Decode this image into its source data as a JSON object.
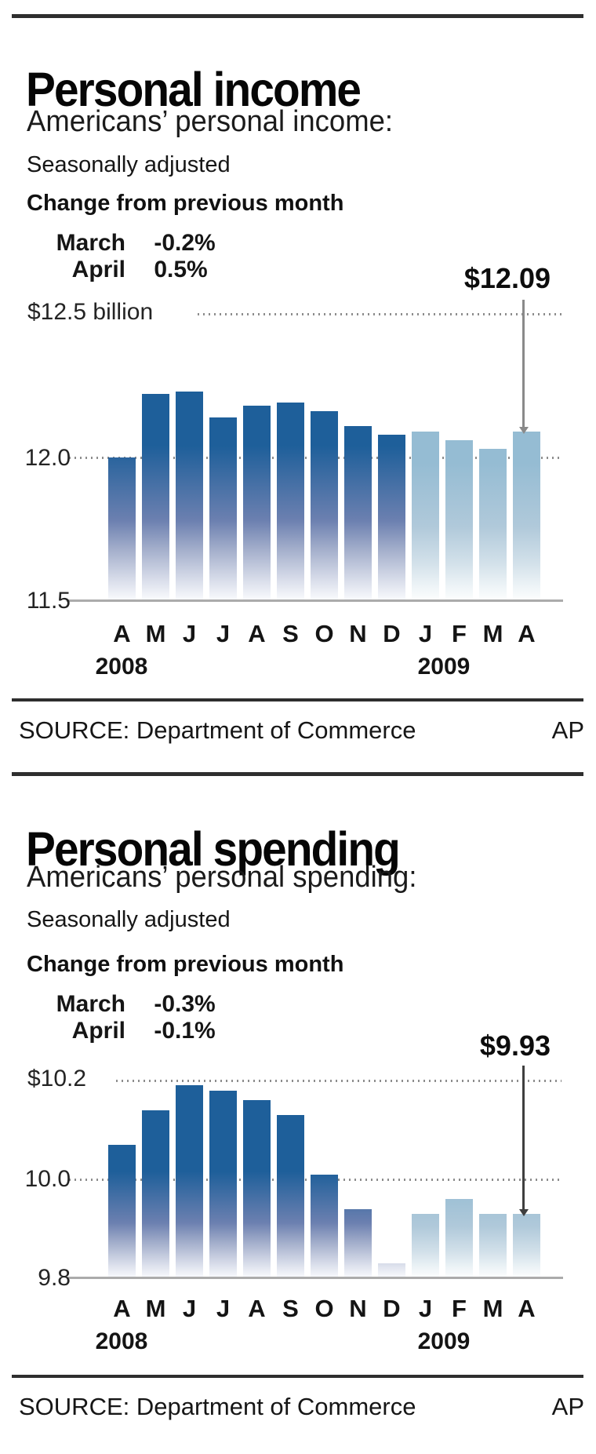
{
  "sections": [
    {
      "title": "Personal income",
      "subtitle": "Americans’ personal income:",
      "note": "Seasonally adjusted",
      "change_label": "Change from previous month",
      "changes": [
        {
          "month": "March",
          "value": "-0.2%"
        },
        {
          "month": "April",
          "value": "0.5%"
        }
      ],
      "callout": "$12.09",
      "axis": {
        "top": "$12.5 billion",
        "mid": "12.0",
        "bottom": "11.5"
      },
      "years": [
        "2008",
        "2009"
      ],
      "source": "SOURCE: Department of Commerce",
      "credit": "AP"
    },
    {
      "title": "Personal spending",
      "subtitle": "Americans’ personal spending:",
      "note": "Seasonally adjusted",
      "change_label": "Change from previous month",
      "changes": [
        {
          "month": "March",
          "value": "-0.3%"
        },
        {
          "month": "April",
          "value": "-0.1%"
        }
      ],
      "callout": "$9.93",
      "axis": {
        "top": "$10.2",
        "mid": "10.0",
        "bottom": "9.8"
      },
      "years": [
        "2008",
        "2009"
      ],
      "source": "SOURCE: Department of Commerce",
      "credit": "AP"
    }
  ],
  "chart_data": [
    {
      "type": "bar",
      "title": "Personal income",
      "subtitle": "Americans' personal income: Seasonally adjusted",
      "ylabel": "$ billion",
      "categories": [
        "A",
        "M",
        "J",
        "J",
        "A",
        "S",
        "O",
        "N",
        "D",
        "J",
        "F",
        "M",
        "A"
      ],
      "values": [
        12.0,
        12.22,
        12.23,
        12.14,
        12.18,
        12.19,
        12.16,
        12.11,
        12.08,
        12.09,
        12.06,
        12.03,
        12.09
      ],
      "ylim": [
        11.5,
        12.5
      ],
      "ytick_labels": [
        "$12.5 billion",
        "12.0",
        "11.5"
      ],
      "gridline_values": [
        12.5,
        12.0
      ],
      "baseline_value": 11.5,
      "grid_style": "dotted",
      "years": [
        {
          "label": "2008",
          "start_index": 0
        },
        {
          "label": "2009",
          "start_index": 9
        }
      ],
      "highlight_start_index": 9,
      "annotation": {
        "text": "$12.09",
        "index": 12
      },
      "change_from_previous_month": {
        "March": "-0.2%",
        "April": "0.5%"
      },
      "colors": {
        "bars_2008": "#1e5f9a",
        "bars_2009": "#95bcd3",
        "callout_line": "#8a8a8a"
      }
    },
    {
      "type": "bar",
      "title": "Personal spending",
      "subtitle": "Americans' personal spending: Seasonally adjusted",
      "ylabel": "$ billion",
      "categories": [
        "A",
        "M",
        "J",
        "J",
        "A",
        "S",
        "O",
        "N",
        "D",
        "J",
        "F",
        "M",
        "A"
      ],
      "values": [
        10.07,
        10.14,
        10.19,
        10.18,
        10.16,
        10.13,
        10.01,
        9.94,
        9.83,
        9.93,
        9.96,
        9.93,
        9.93
      ],
      "ylim": [
        9.8,
        10.2
      ],
      "ytick_labels": [
        "$10.2",
        "10.0",
        "9.8"
      ],
      "gridline_values": [
        10.2,
        10.0
      ],
      "baseline_value": 9.8,
      "grid_style": "dotted",
      "years": [
        {
          "label": "2008",
          "start_index": 0
        },
        {
          "label": "2009",
          "start_index": 9
        }
      ],
      "highlight_start_index": 9,
      "annotation": {
        "text": "$9.93",
        "index": 12
      },
      "change_from_previous_month": {
        "March": "-0.3%",
        "April": "-0.1%"
      },
      "colors": {
        "bars_2008": "#1e5f9a",
        "bars_2009": "#95bcd3",
        "callout_line": "#3f3f3f"
      }
    }
  ]
}
